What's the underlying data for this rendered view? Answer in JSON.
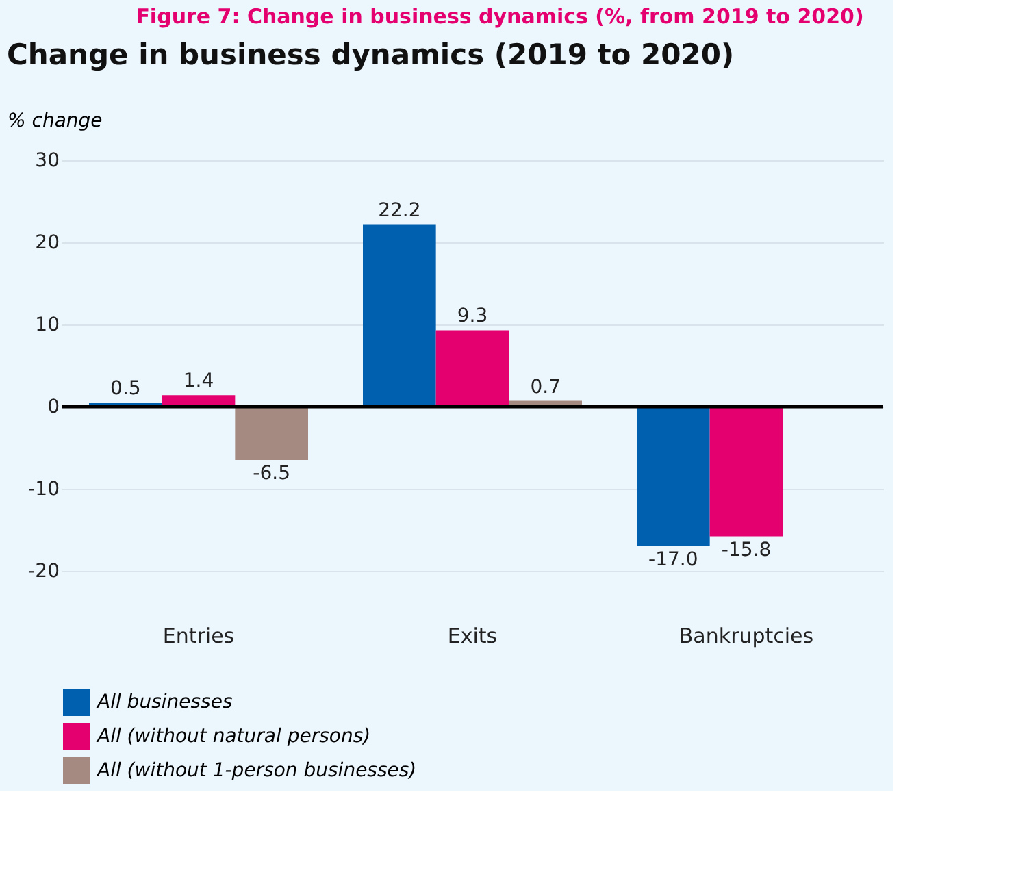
{
  "chart_data": {
    "type": "bar",
    "title": "Change in business dynamics (2019 to 2020)",
    "ylabel": "% change",
    "annotations": [
      "Figure 7: Change in business dynamics (%, from 2019 to 2020)"
    ],
    "categories": [
      "Entries",
      "Exits",
      "Bankruptcies"
    ],
    "series": [
      {
        "name": "All businesses",
        "color": "#0060b0",
        "values": [
          0.5,
          22.2,
          -17.0
        ],
        "value_labels": [
          "0.5",
          "22.2",
          "-17.0"
        ]
      },
      {
        "name": "All (without natural persons)",
        "color": "#e4006f",
        "values": [
          1.4,
          9.3,
          -15.8
        ]
      },
      {
        "name": "All (without 1-person businesses)",
        "color": "#a58a82",
        "values": [
          -6.5,
          0.7,
          null
        ]
      }
    ],
    "ylim": [
      -20,
      30
    ],
    "yticks": [
      -20,
      -10,
      0,
      10,
      20,
      30
    ],
    "ref_lines": [
      {
        "axis": "y",
        "value": 0,
        "color": "#000000"
      }
    ],
    "data_labels": true,
    "grid": "y",
    "legend": "bottom left"
  }
}
